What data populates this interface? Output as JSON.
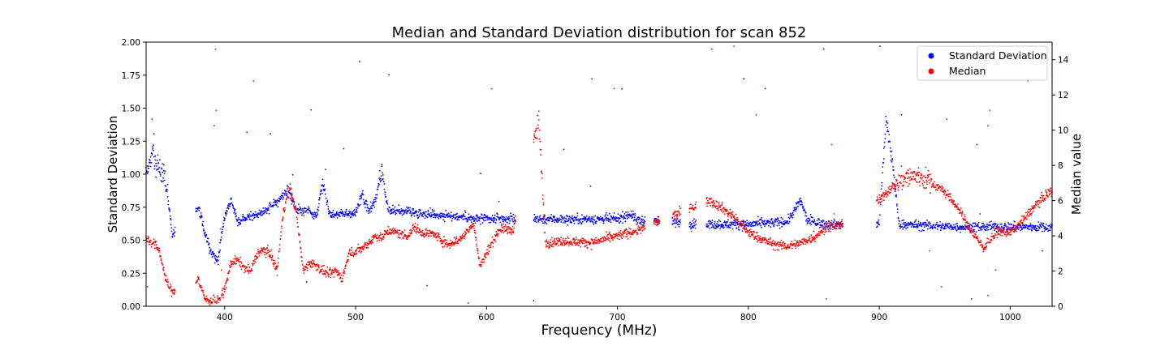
{
  "chart_data": {
    "type": "scatter",
    "title": "Median and Standard Deviation distribution for scan 852",
    "xlabel": "Frequency (MHz)",
    "ylabel_left": "Standard Deviation",
    "ylabel_right": "Median value",
    "xlim": [
      340,
      1032
    ],
    "ylim_left": [
      0,
      2.0
    ],
    "ylim_right": [
      0,
      15
    ],
    "x_ticks": [
      400,
      500,
      600,
      700,
      800,
      900,
      1000
    ],
    "y_ticks_left": [
      "0.00",
      "0.25",
      "0.50",
      "0.75",
      "1.00",
      "1.25",
      "1.50",
      "1.75",
      "2.00"
    ],
    "y_ticks_right": [
      0,
      2,
      4,
      6,
      8,
      10,
      12,
      14
    ],
    "grid": false,
    "legend_position": "top-right",
    "series": [
      {
        "name": "Standard Deviation",
        "axis": "left",
        "color": "#0000ff",
        "profile": [
          [
            340,
            1.0
          ],
          [
            345,
            1.15
          ],
          [
            350,
            1.05
          ],
          [
            355,
            0.95
          ],
          [
            360,
            0.55
          ],
          [
            380,
            0.75
          ],
          [
            385,
            0.55
          ],
          [
            390,
            0.4
          ],
          [
            395,
            0.35
          ],
          [
            400,
            0.7
          ],
          [
            405,
            0.8
          ],
          [
            410,
            0.65
          ],
          [
            420,
            0.68
          ],
          [
            430,
            0.72
          ],
          [
            440,
            0.78
          ],
          [
            448,
            0.88
          ],
          [
            455,
            0.72
          ],
          [
            465,
            0.72
          ],
          [
            470,
            0.68
          ],
          [
            475,
            0.95
          ],
          [
            480,
            0.7
          ],
          [
            490,
            0.7
          ],
          [
            495,
            0.7
          ],
          [
            500,
            0.7
          ],
          [
            505,
            0.85
          ],
          [
            510,
            0.72
          ],
          [
            515,
            0.8
          ],
          [
            520,
            1.0
          ],
          [
            525,
            0.72
          ],
          [
            530,
            0.72
          ],
          [
            540,
            0.72
          ],
          [
            550,
            0.7
          ],
          [
            560,
            0.7
          ],
          [
            570,
            0.68
          ],
          [
            580,
            0.68
          ],
          [
            590,
            0.66
          ],
          [
            600,
            0.66
          ],
          [
            610,
            0.66
          ],
          [
            620,
            0.66
          ],
          [
            660,
            0.66
          ],
          [
            700,
            0.66
          ],
          [
            710,
            0.7
          ],
          [
            715,
            0.65
          ],
          [
            720,
            0.65
          ],
          [
            770,
            0.62
          ],
          [
            800,
            0.62
          ],
          [
            830,
            0.64
          ],
          [
            840,
            0.8
          ],
          [
            845,
            0.65
          ],
          [
            860,
            0.62
          ],
          [
            870,
            0.62
          ],
          [
            900,
            0.62
          ],
          [
            905,
            1.4
          ],
          [
            910,
            1.1
          ],
          [
            915,
            0.62
          ],
          [
            960,
            0.6
          ],
          [
            1000,
            0.6
          ],
          [
            1030,
            0.6
          ]
        ]
      },
      {
        "name": "Median",
        "axis": "right",
        "color": "#ff0000",
        "profile": [
          [
            340,
            3.8
          ],
          [
            345,
            3.6
          ],
          [
            350,
            3.2
          ],
          [
            355,
            1.5
          ],
          [
            360,
            0.8
          ],
          [
            380,
            1.5
          ],
          [
            385,
            0.4
          ],
          [
            390,
            0.3
          ],
          [
            395,
            0.3
          ],
          [
            400,
            0.9
          ],
          [
            405,
            2.5
          ],
          [
            410,
            2.6
          ],
          [
            415,
            2.2
          ],
          [
            420,
            2.0
          ],
          [
            425,
            3.0
          ],
          [
            430,
            3.2
          ],
          [
            435,
            3.0
          ],
          [
            440,
            2.0
          ],
          [
            445,
            5.5
          ],
          [
            450,
            6.7
          ],
          [
            455,
            5.2
          ],
          [
            460,
            2.0
          ],
          [
            465,
            2.5
          ],
          [
            470,
            2.3
          ],
          [
            475,
            2.0
          ],
          [
            480,
            1.8
          ],
          [
            485,
            2.0
          ],
          [
            490,
            1.6
          ],
          [
            495,
            3.0
          ],
          [
            500,
            3.1
          ],
          [
            505,
            3.3
          ],
          [
            510,
            3.6
          ],
          [
            515,
            4.0
          ],
          [
            520,
            3.9
          ],
          [
            525,
            4.3
          ],
          [
            530,
            4.2
          ],
          [
            540,
            4.0
          ],
          [
            545,
            4.5
          ],
          [
            550,
            4.2
          ],
          [
            560,
            4.1
          ],
          [
            570,
            3.5
          ],
          [
            580,
            3.8
          ],
          [
            590,
            4.7
          ],
          [
            595,
            2.3
          ],
          [
            600,
            3.0
          ],
          [
            610,
            4.4
          ],
          [
            620,
            4.3
          ],
          [
            640,
            10.5
          ],
          [
            645,
            3.6
          ],
          [
            660,
            3.7
          ],
          [
            680,
            3.6
          ],
          [
            700,
            4.0
          ],
          [
            715,
            4.3
          ],
          [
            770,
            6.0
          ],
          [
            780,
            5.6
          ],
          [
            790,
            5.0
          ],
          [
            800,
            4.2
          ],
          [
            810,
            3.8
          ],
          [
            820,
            3.5
          ],
          [
            830,
            3.4
          ],
          [
            840,
            3.6
          ],
          [
            850,
            3.9
          ],
          [
            860,
            4.5
          ],
          [
            870,
            4.6
          ],
          [
            900,
            6.0
          ],
          [
            910,
            6.8
          ],
          [
            920,
            7.3
          ],
          [
            930,
            7.4
          ],
          [
            940,
            7.0
          ],
          [
            950,
            6.5
          ],
          [
            960,
            5.6
          ],
          [
            970,
            4.3
          ],
          [
            980,
            3.3
          ],
          [
            990,
            4.2
          ],
          [
            1000,
            4.2
          ],
          [
            1010,
            4.9
          ],
          [
            1020,
            5.8
          ],
          [
            1030,
            6.5
          ]
        ]
      }
    ]
  }
}
